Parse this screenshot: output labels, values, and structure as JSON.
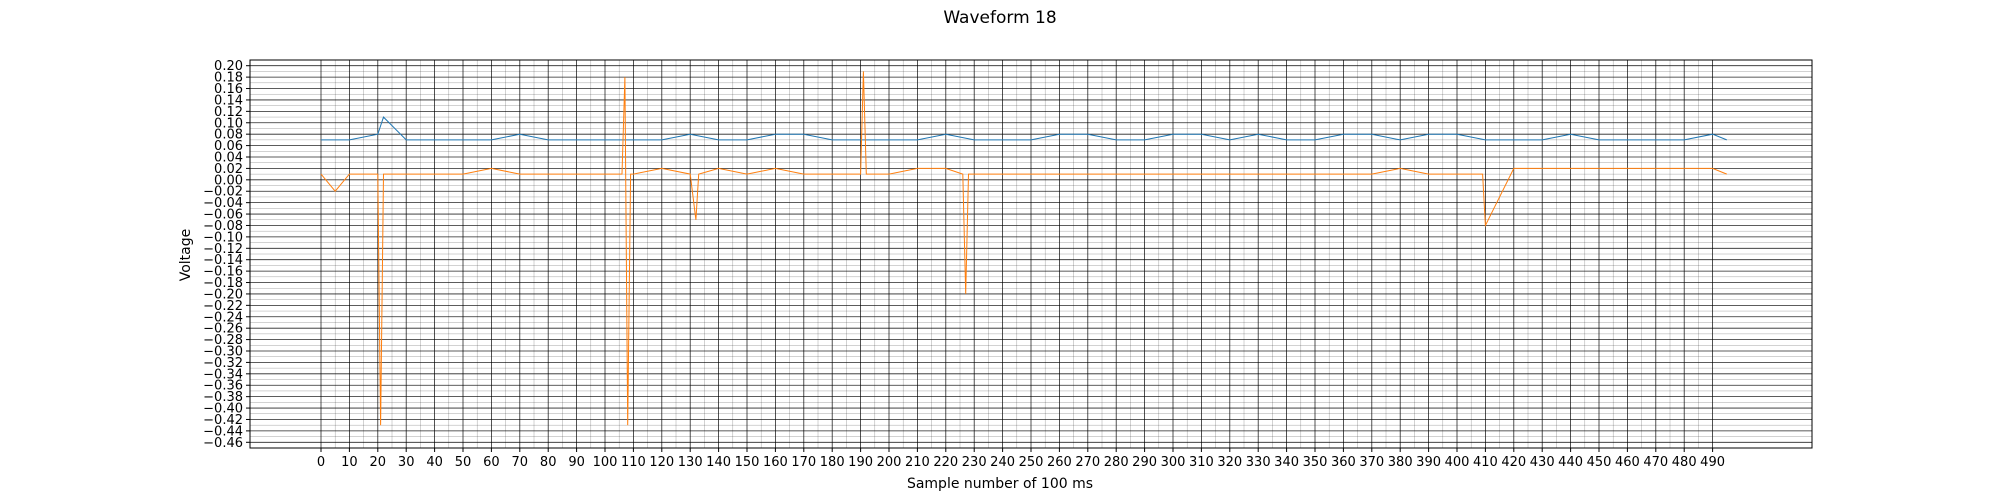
{
  "chart_data": {
    "type": "line",
    "title": "Waveform 18",
    "xlabel": "Sample number of 100 ms",
    "ylabel": "Voltage",
    "xlim": [
      -25,
      525
    ],
    "ylim": [
      -0.47,
      0.21
    ],
    "x_ticks": [
      0,
      10,
      20,
      30,
      40,
      50,
      60,
      70,
      80,
      90,
      100,
      110,
      120,
      130,
      140,
      150,
      160,
      170,
      180,
      190,
      200,
      210,
      220,
      230,
      240,
      250,
      260,
      270,
      280,
      290,
      300,
      310,
      320,
      330,
      340,
      350,
      360,
      370,
      380,
      390,
      400,
      410,
      420,
      430,
      440,
      450,
      460,
      470,
      480,
      490
    ],
    "y_ticks": [
      0.2,
      0.18,
      0.16,
      0.14,
      0.12,
      0.1,
      0.08,
      0.06,
      0.04,
      0.02,
      0.0,
      -0.02,
      -0.04,
      -0.06,
      -0.08,
      -0.1,
      -0.12,
      -0.14,
      -0.16,
      -0.18,
      -0.2,
      -0.22,
      -0.24,
      -0.26,
      -0.28,
      -0.3,
      -0.32,
      -0.34,
      -0.36,
      -0.38,
      -0.4,
      -0.42,
      -0.44,
      -0.46
    ],
    "grid": true,
    "series": [
      {
        "color": "#1f77b4",
        "x": [
          0,
          10,
          20,
          22,
          30,
          40,
          50,
          60,
          70,
          80,
          90,
          100,
          110,
          120,
          130,
          140,
          150,
          160,
          170,
          180,
          190,
          200,
          210,
          220,
          230,
          240,
          250,
          260,
          270,
          280,
          290,
          300,
          310,
          320,
          330,
          340,
          350,
          360,
          370,
          380,
          390,
          400,
          410,
          420,
          430,
          440,
          450,
          460,
          470,
          480,
          490,
          495
        ],
        "y": [
          0.07,
          0.07,
          0.08,
          0.11,
          0.07,
          0.07,
          0.07,
          0.07,
          0.08,
          0.07,
          0.07,
          0.07,
          0.07,
          0.07,
          0.08,
          0.07,
          0.07,
          0.08,
          0.08,
          0.07,
          0.07,
          0.07,
          0.07,
          0.08,
          0.07,
          0.07,
          0.07,
          0.08,
          0.08,
          0.07,
          0.07,
          0.08,
          0.08,
          0.07,
          0.08,
          0.07,
          0.07,
          0.08,
          0.08,
          0.07,
          0.08,
          0.08,
          0.07,
          0.07,
          0.07,
          0.08,
          0.07,
          0.07,
          0.07,
          0.07,
          0.08,
          0.07
        ]
      },
      {
        "color": "#ff7f0e",
        "x": [
          0,
          5,
          10,
          20,
          21,
          22,
          30,
          40,
          50,
          60,
          70,
          80,
          90,
          100,
          106,
          107,
          108,
          109,
          110,
          120,
          130,
          132,
          133,
          140,
          150,
          160,
          170,
          180,
          190,
          191,
          192,
          200,
          210,
          220,
          226,
          227,
          228,
          240,
          250,
          260,
          270,
          280,
          290,
          300,
          310,
          320,
          330,
          340,
          350,
          360,
          370,
          380,
          390,
          400,
          409,
          410,
          420,
          430,
          440,
          450,
          460,
          470,
          480,
          490,
          495
        ],
        "y": [
          0.01,
          -0.02,
          0.01,
          0.01,
          -0.43,
          0.01,
          0.01,
          0.01,
          0.01,
          0.02,
          0.01,
          0.01,
          0.01,
          0.01,
          0.01,
          0.18,
          -0.43,
          0.01,
          0.01,
          0.02,
          0.01,
          -0.07,
          0.01,
          0.02,
          0.01,
          0.02,
          0.01,
          0.01,
          0.01,
          0.19,
          0.01,
          0.01,
          0.02,
          0.02,
          0.01,
          -0.2,
          0.01,
          0.01,
          0.01,
          0.01,
          0.01,
          0.01,
          0.01,
          0.01,
          0.01,
          0.01,
          0.01,
          0.01,
          0.01,
          0.01,
          0.01,
          0.02,
          0.01,
          0.01,
          0.01,
          -0.08,
          0.02,
          0.02,
          0.02,
          0.02,
          0.02,
          0.02,
          0.02,
          0.02,
          0.01
        ]
      }
    ]
  }
}
